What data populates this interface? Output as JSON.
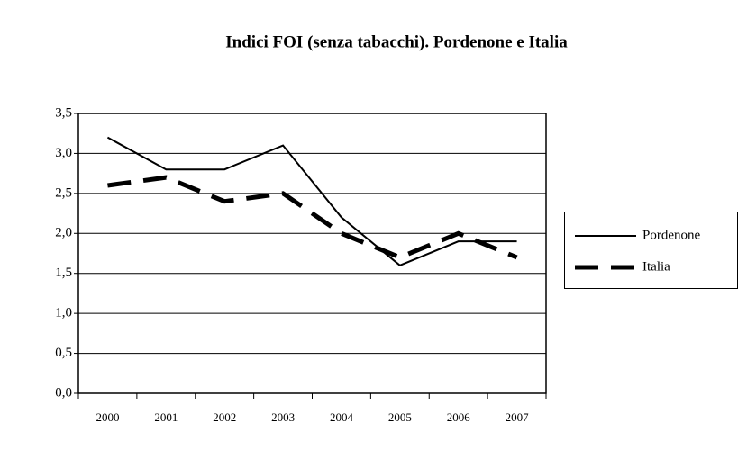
{
  "chart_data": {
    "type": "line",
    "title": "Indici FOI (senza tabacchi). Pordenone e Italia",
    "categories": [
      "2000",
      "2001",
      "2002",
      "2003",
      "2004",
      "2005",
      "2006",
      "2007"
    ],
    "series": [
      {
        "name": "Pordenone",
        "color": "#000000",
        "style": "solid",
        "values": [
          3.2,
          2.8,
          2.8,
          3.1,
          2.2,
          1.6,
          1.9,
          1.9
        ]
      },
      {
        "name": "Italia",
        "color": "#000000",
        "style": "dashed",
        "values": [
          2.6,
          2.7,
          2.4,
          2.5,
          2.0,
          1.7,
          2.0,
          1.7
        ]
      }
    ],
    "ylim": [
      0,
      3.5
    ],
    "yticks": [
      {
        "value": 0,
        "label": "0,0"
      },
      {
        "value": 0.5,
        "label": "0,5"
      },
      {
        "value": 1,
        "label": "1,0"
      },
      {
        "value": 1.5,
        "label": "1,5"
      },
      {
        "value": 2,
        "label": "2,0"
      },
      {
        "value": 2.5,
        "label": "2,5"
      },
      {
        "value": 3,
        "label": "3,0"
      },
      {
        "value": 3.5,
        "label": "3,5"
      }
    ],
    "grid": true,
    "legend": "right"
  }
}
